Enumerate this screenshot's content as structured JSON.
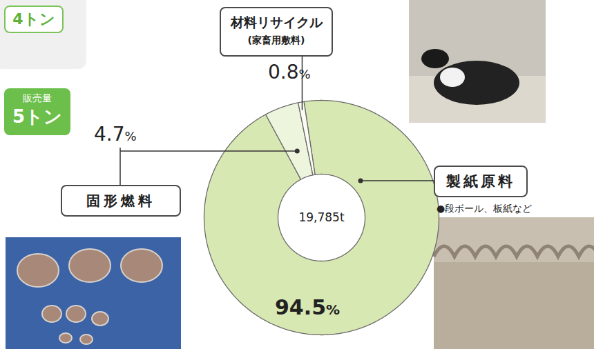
{
  "chart_data": {
    "type": "pie",
    "categories": [
      "製紙原料",
      "固形燃料",
      "材料リサイクル"
    ],
    "values": [
      94.5,
      4.7,
      0.8
    ],
    "value_labels": [
      "94.5%",
      "4.7%",
      "0.8%"
    ],
    "sublabels": [
      "●段ボール、板紙など",
      null,
      "(家畜用敷料)"
    ],
    "colors": [
      "#d8e8b3",
      "#eef5dd",
      "#fbfdf4"
    ],
    "center_label": "19,785t",
    "annotations": [
      "4トン",
      "販売量",
      "5トン"
    ],
    "data_labels": true
  }
}
